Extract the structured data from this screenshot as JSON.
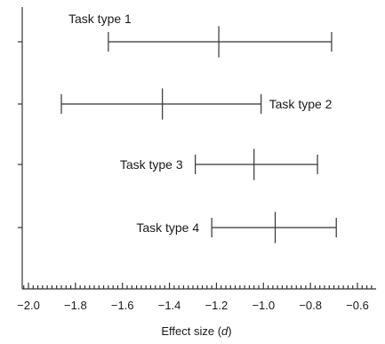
{
  "chart_data": {
    "type": "errorbar",
    "xlabel_prefix": "Effect size (",
    "xlabel_symbol": "d",
    "xlabel_suffix": ")",
    "xlim": [
      -2.0,
      -0.5
    ],
    "x_major_ticks": [
      -2.0,
      -1.8,
      -1.6,
      -1.4,
      -1.2,
      -1.0,
      -0.8,
      -0.6
    ],
    "x_tick_labels": [
      "−2.0",
      "−1.8",
      "−1.6",
      "−1.4",
      "−1.2",
      "−1.0",
      "−0.8",
      "−0.6"
    ],
    "x_minor_step": 0.02,
    "items": [
      {
        "label": "Task type 1",
        "low": -1.66,
        "mid": -1.19,
        "high": -0.71,
        "label_position": "above-left"
      },
      {
        "label": "Task type 2",
        "low": -1.86,
        "mid": -1.43,
        "high": -1.01,
        "label_position": "right"
      },
      {
        "label": "Task type 3",
        "low": -1.29,
        "mid": -1.04,
        "high": -0.77,
        "label_position": "left"
      },
      {
        "label": "Task type 4",
        "low": -1.22,
        "mid": -0.95,
        "high": -0.69,
        "label_position": "left"
      }
    ],
    "grid": false,
    "colors": {
      "line": "#333333",
      "text": "#1a1a1a"
    }
  }
}
